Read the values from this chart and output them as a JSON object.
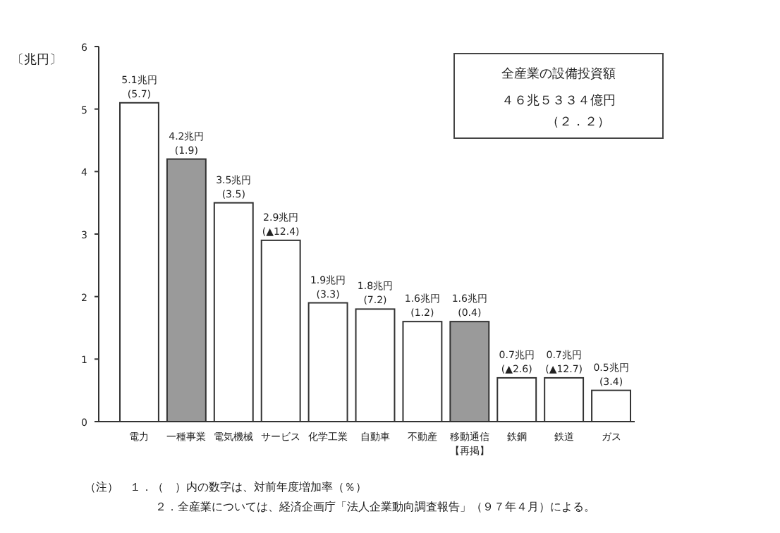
{
  "chart_data": {
    "type": "bar",
    "ylabel": "〔兆円〕",
    "categories": [
      "電力",
      "一種事業",
      "電気機械",
      "サービス",
      "化学工業",
      "自動車",
      "不動産",
      "移動通信【再掲】",
      "鉄鋼",
      "鉄道",
      "ガス"
    ],
    "values": [
      5.1,
      4.2,
      3.5,
      2.9,
      1.9,
      1.8,
      1.6,
      1.6,
      0.7,
      0.7,
      0.5
    ],
    "value_labels": [
      "5.1兆円 (5.7)",
      "4.2兆円 (1.9)",
      "3.5兆円 (3.5)",
      "2.9兆円 (▲12.4)",
      "1.9兆円 (3.3)",
      "1.8兆円 (7.2)",
      "1.6兆円 (1.2)",
      "1.6兆円 (0.4)",
      "0.7兆円 (▲2.6)",
      "0.7兆円 (▲12.7)",
      "0.5兆円 (3.4)"
    ],
    "colors": [
      "#ffffff",
      "#9a9a9a",
      "#ffffff",
      "#ffffff",
      "#ffffff",
      "#ffffff",
      "#ffffff",
      "#9a9a9a",
      "#ffffff",
      "#ffffff",
      "#ffffff"
    ],
    "ylim": [
      0,
      6
    ],
    "yticks": [
      0,
      1,
      2,
      3,
      4,
      5,
      6
    ],
    "annotations": [
      "全産業の設備投資額",
      "４６兆５３３４億円",
      "（２．２）",
      "（注）　１．（　）内の数字は、対前年度増加率（％）",
      "２．全産業については、経済企画庁「法人企業動向調査報告」（９７年４月）による。"
    ]
  }
}
